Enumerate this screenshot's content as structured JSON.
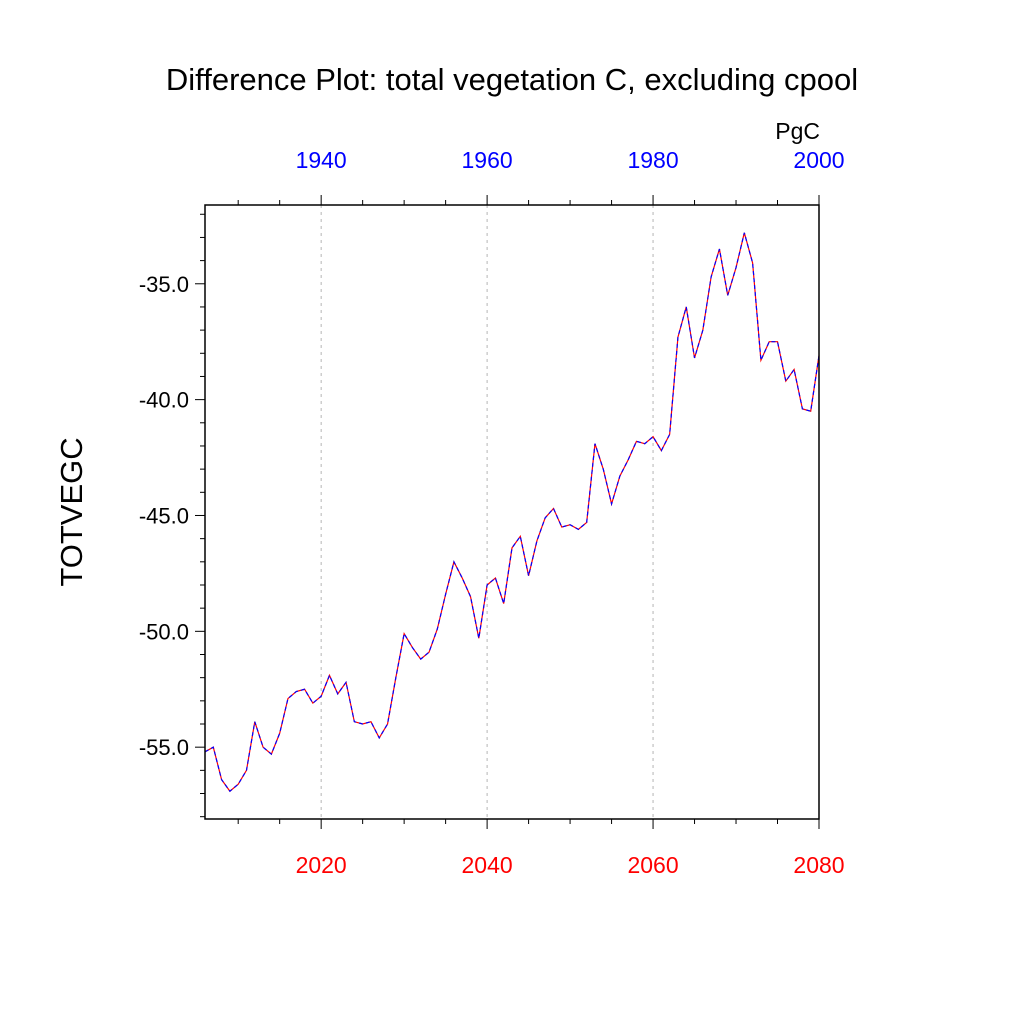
{
  "chart_data": {
    "type": "line",
    "title": "Difference Plot: total vegetation C, excluding cpool",
    "units": "PgC",
    "ylabel": "TOTVEGC",
    "ylim": [
      -58.1,
      -31.6
    ],
    "yticks": [
      -55.0,
      -50.0,
      -45.0,
      -40.0,
      -35.0
    ],
    "ytick_labels": [
      "-55.0",
      "-50.0",
      "-45.0",
      "-40.0",
      "-35.0"
    ],
    "x_bottom": {
      "range": [
        2006,
        2080
      ],
      "ticks": [
        2020,
        2040,
        2060,
        2080
      ],
      "color": "#ff0000",
      "gridlines": [
        2020,
        2040,
        2060
      ]
    },
    "x_top": {
      "range": [
        1926,
        2000
      ],
      "ticks": [
        1940,
        1960,
        1980,
        2000
      ],
      "color": "#0000ff"
    },
    "series": [
      {
        "name": "TOTVEGC difference",
        "colors": [
          "#ff0000",
          "#0000ff"
        ],
        "x": [
          2006,
          2007,
          2008,
          2009,
          2010,
          2011,
          2012,
          2013,
          2014,
          2015,
          2016,
          2017,
          2018,
          2019,
          2020,
          2021,
          2022,
          2023,
          2024,
          2025,
          2026,
          2027,
          2028,
          2029,
          2030,
          2031,
          2032,
          2033,
          2034,
          2035,
          2036,
          2037,
          2038,
          2039,
          2040,
          2041,
          2042,
          2043,
          2044,
          2045,
          2046,
          2047,
          2048,
          2049,
          2050,
          2051,
          2052,
          2053,
          2054,
          2055,
          2056,
          2057,
          2058,
          2059,
          2060,
          2061,
          2062,
          2063,
          2064,
          2065,
          2066,
          2067,
          2068,
          2069,
          2070,
          2071,
          2072,
          2073,
          2074,
          2075,
          2076,
          2077,
          2078,
          2079,
          2080
        ],
        "values": [
          -55.2,
          -55.0,
          -56.4,
          -56.9,
          -56.6,
          -56.0,
          -53.9,
          -55.0,
          -55.3,
          -54.4,
          -52.9,
          -52.6,
          -52.5,
          -53.1,
          -52.8,
          -51.9,
          -52.7,
          -52.2,
          -53.9,
          -54.0,
          -53.9,
          -54.6,
          -54.0,
          -52.0,
          -50.1,
          -50.7,
          -51.2,
          -50.9,
          -49.9,
          -48.4,
          -47.0,
          -47.7,
          -48.5,
          -50.3,
          -48.0,
          -47.7,
          -48.8,
          -46.4,
          -45.9,
          -47.6,
          -46.1,
          -45.1,
          -44.7,
          -45.5,
          -45.4,
          -45.6,
          -45.3,
          -41.9,
          -43.0,
          -44.5,
          -43.3,
          -42.6,
          -41.8,
          -41.9,
          -41.6,
          -42.2,
          -41.5,
          -37.3,
          -36.0,
          -38.2,
          -37.0,
          -34.7,
          -33.5,
          -35.5,
          -34.3,
          -32.8,
          -34.1,
          -38.3,
          -37.5,
          -37.5,
          -39.2,
          -38.7,
          -40.4,
          -40.5,
          -38.1
        ]
      }
    ]
  }
}
